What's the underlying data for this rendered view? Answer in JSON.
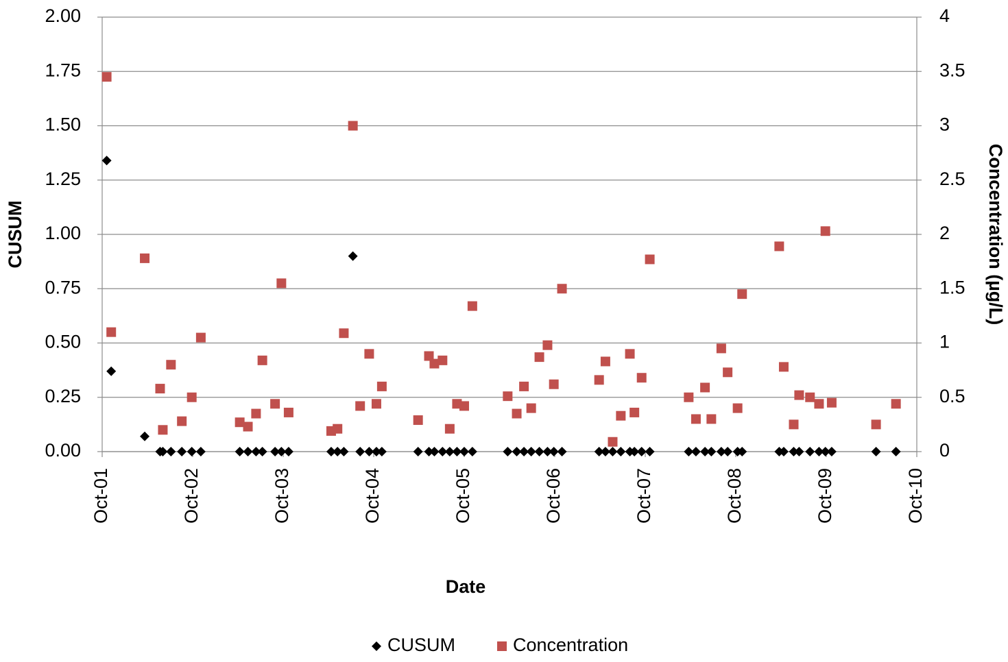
{
  "chart_data": {
    "type": "scatter",
    "x_label": "Date",
    "y_label": "CUSUM",
    "y2_label": "Concentration (µg/L)",
    "xlim": [
      0,
      9
    ],
    "xticks": [
      {
        "value": 0,
        "label": "Oct-01"
      },
      {
        "value": 1,
        "label": "Oct-02"
      },
      {
        "value": 2,
        "label": "Oct-03"
      },
      {
        "value": 3,
        "label": "Oct-04"
      },
      {
        "value": 4,
        "label": "Oct-05"
      },
      {
        "value": 5,
        "label": "Oct-06"
      },
      {
        "value": 6,
        "label": "Oct-07"
      },
      {
        "value": 7,
        "label": "Oct-08"
      },
      {
        "value": 8,
        "label": "Oct-09"
      },
      {
        "value": 9,
        "label": "Oct-10"
      }
    ],
    "ylim": [
      0,
      2
    ],
    "yticks": [
      {
        "value": 0,
        "label": "0.00"
      },
      {
        "value": 0.25,
        "label": "0.25"
      },
      {
        "value": 0.5,
        "label": "0.50"
      },
      {
        "value": 0.75,
        "label": "0.75"
      },
      {
        "value": 1,
        "label": "1.00"
      },
      {
        "value": 1.25,
        "label": "1.25"
      },
      {
        "value": 1.5,
        "label": "1.50"
      },
      {
        "value": 1.75,
        "label": "1.75"
      },
      {
        "value": 2,
        "label": "2.00"
      }
    ],
    "y2lim": [
      0,
      4
    ],
    "y2ticks": [
      0,
      0.5,
      1,
      1.5,
      2,
      2.5,
      3,
      3.5,
      4
    ],
    "grid": true,
    "legend": "bottom",
    "x": [
      0.05,
      0.1,
      0.47,
      0.64,
      0.67,
      0.76,
      0.88,
      0.99,
      1.09,
      1.52,
      1.61,
      1.7,
      1.77,
      1.91,
      1.98,
      2.06,
      2.53,
      2.6,
      2.67,
      2.77,
      2.85,
      2.95,
      3.03,
      3.09,
      3.49,
      3.61,
      3.67,
      3.76,
      3.84,
      3.92,
      4.0,
      4.09,
      4.48,
      4.58,
      4.66,
      4.74,
      4.83,
      4.92,
      4.99,
      5.08,
      5.49,
      5.56,
      5.64,
      5.73,
      5.83,
      5.88,
      5.96,
      6.05,
      6.48,
      6.56,
      6.66,
      6.73,
      6.84,
      6.91,
      7.02,
      7.07,
      7.48,
      7.53,
      7.64,
      7.7,
      7.82,
      7.92,
      7.99,
      8.06,
      8.55,
      8.77
    ],
    "series": [
      {
        "name": "CUSUM",
        "color": "#000000",
        "marker": "diamond",
        "values": [
          1.34,
          0.37,
          0.07,
          0,
          0,
          0,
          0,
          0,
          0,
          0,
          0,
          0,
          0,
          0,
          0,
          0,
          0,
          0,
          0,
          0.9,
          0,
          0,
          0,
          0,
          0,
          0,
          0,
          0,
          0,
          0,
          0,
          0,
          0,
          0,
          0,
          0,
          0,
          0,
          0,
          0,
          0,
          0,
          0,
          0,
          0,
          0,
          0,
          0,
          0,
          0,
          0,
          0,
          0,
          0,
          0,
          0,
          0,
          0,
          0,
          0,
          0,
          0,
          0,
          0,
          0,
          0
        ]
      },
      {
        "name": "Concentration",
        "color": "#c0504d",
        "marker": "square",
        "axis": "y2",
        "values": [
          3.45,
          1.1,
          1.78,
          0.58,
          0.2,
          0.8,
          0.28,
          0.5,
          1.05,
          0.27,
          0.23,
          0.35,
          0.84,
          0.44,
          1.55,
          0.36,
          0.19,
          0.21,
          1.09,
          3.0,
          0.42,
          0.9,
          0.44,
          0.6,
          0.29,
          0.88,
          0.81,
          0.84,
          0.21,
          0.44,
          0.42,
          1.34,
          0.51,
          0.35,
          0.6,
          0.4,
          0.87,
          0.98,
          0.62,
          1.5,
          0.66,
          0.83,
          0.09,
          0.33,
          0.9,
          0.36,
          0.68,
          1.77,
          0.5,
          0.3,
          0.59,
          0.3,
          0.95,
          0.73,
          0.4,
          1.45,
          1.89,
          0.78,
          0.25,
          0.52,
          0.5,
          0.44,
          2.03,
          0.45,
          0.25,
          0.44
        ]
      }
    ]
  }
}
